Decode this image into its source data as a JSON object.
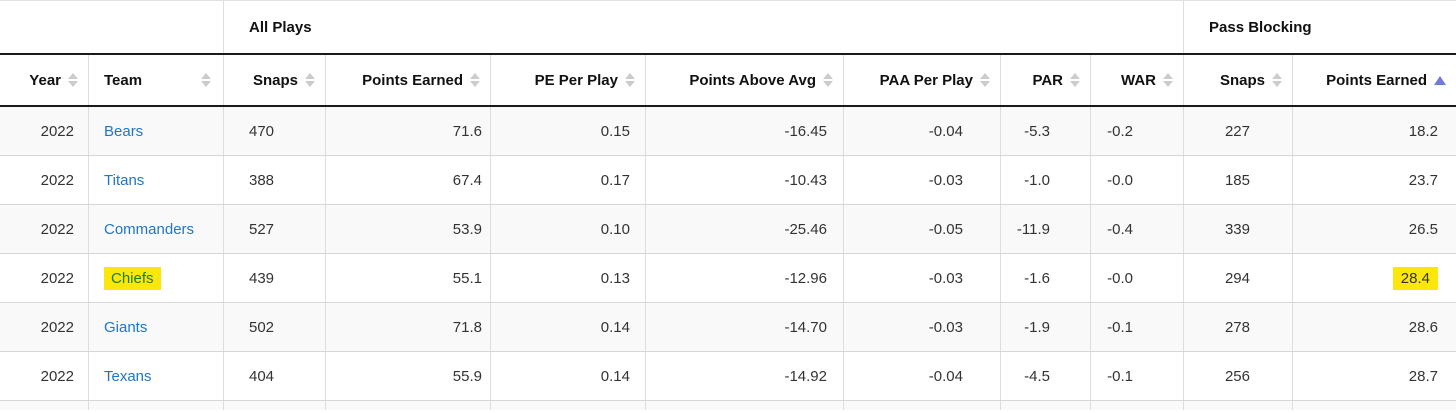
{
  "table": {
    "groups": [
      {
        "label": "",
        "span": 2
      },
      {
        "label": "All Plays",
        "span": 7
      },
      {
        "label": "Pass Blocking",
        "span": 2
      }
    ],
    "columns": [
      {
        "label": "Year",
        "sort": "none"
      },
      {
        "label": "Team",
        "sort": "none"
      },
      {
        "label": "Snaps",
        "sort": "none"
      },
      {
        "label": "Points Earned",
        "sort": "none"
      },
      {
        "label": "PE Per Play",
        "sort": "none"
      },
      {
        "label": "Points Above Avg",
        "sort": "none"
      },
      {
        "label": "PAA Per Play",
        "sort": "none"
      },
      {
        "label": "PAR",
        "sort": "none"
      },
      {
        "label": "WAR",
        "sort": "none"
      },
      {
        "label": "Snaps",
        "sort": "none"
      },
      {
        "label": "Points Earned",
        "sort": "asc"
      }
    ],
    "rows": [
      {
        "cells": [
          "2022",
          "Bears",
          "470",
          "71.6",
          "0.15",
          "-16.45",
          "-0.04",
          "-5.3",
          "-0.2",
          "227",
          "18.2"
        ]
      },
      {
        "cells": [
          "2022",
          "Titans",
          "388",
          "67.4",
          "0.17",
          "-10.43",
          "-0.03",
          "-1.0",
          "-0.0",
          "185",
          "23.7"
        ]
      },
      {
        "cells": [
          "2022",
          "Commanders",
          "527",
          "53.9",
          "0.10",
          "-25.46",
          "-0.05",
          "-11.9",
          "-0.4",
          "339",
          "26.5"
        ]
      },
      {
        "cells": [
          "2022",
          "Chiefs",
          "439",
          "55.1",
          "0.13",
          "-12.96",
          "-0.03",
          "-1.6",
          "-0.0",
          "294",
          "28.4"
        ]
      },
      {
        "cells": [
          "2022",
          "Giants",
          "502",
          "71.8",
          "0.14",
          "-14.70",
          "-0.03",
          "-1.9",
          "-0.1",
          "278",
          "28.6"
        ]
      },
      {
        "cells": [
          "2022",
          "Texans",
          "404",
          "55.9",
          "0.14",
          "-14.92",
          "-0.04",
          "-4.5",
          "-0.1",
          "256",
          "28.7"
        ]
      }
    ]
  },
  "highlights": {
    "row_index": 3,
    "team": "Chiefs",
    "value": "28.4"
  },
  "colors": {
    "link_blue": "#1f76c7",
    "highlight_yellow": "#fbe70a",
    "highlight_green_text": "#1e7d1e",
    "active_sort_arrow": "#7478d8",
    "alt_row_bg": "#f9f9f9"
  }
}
